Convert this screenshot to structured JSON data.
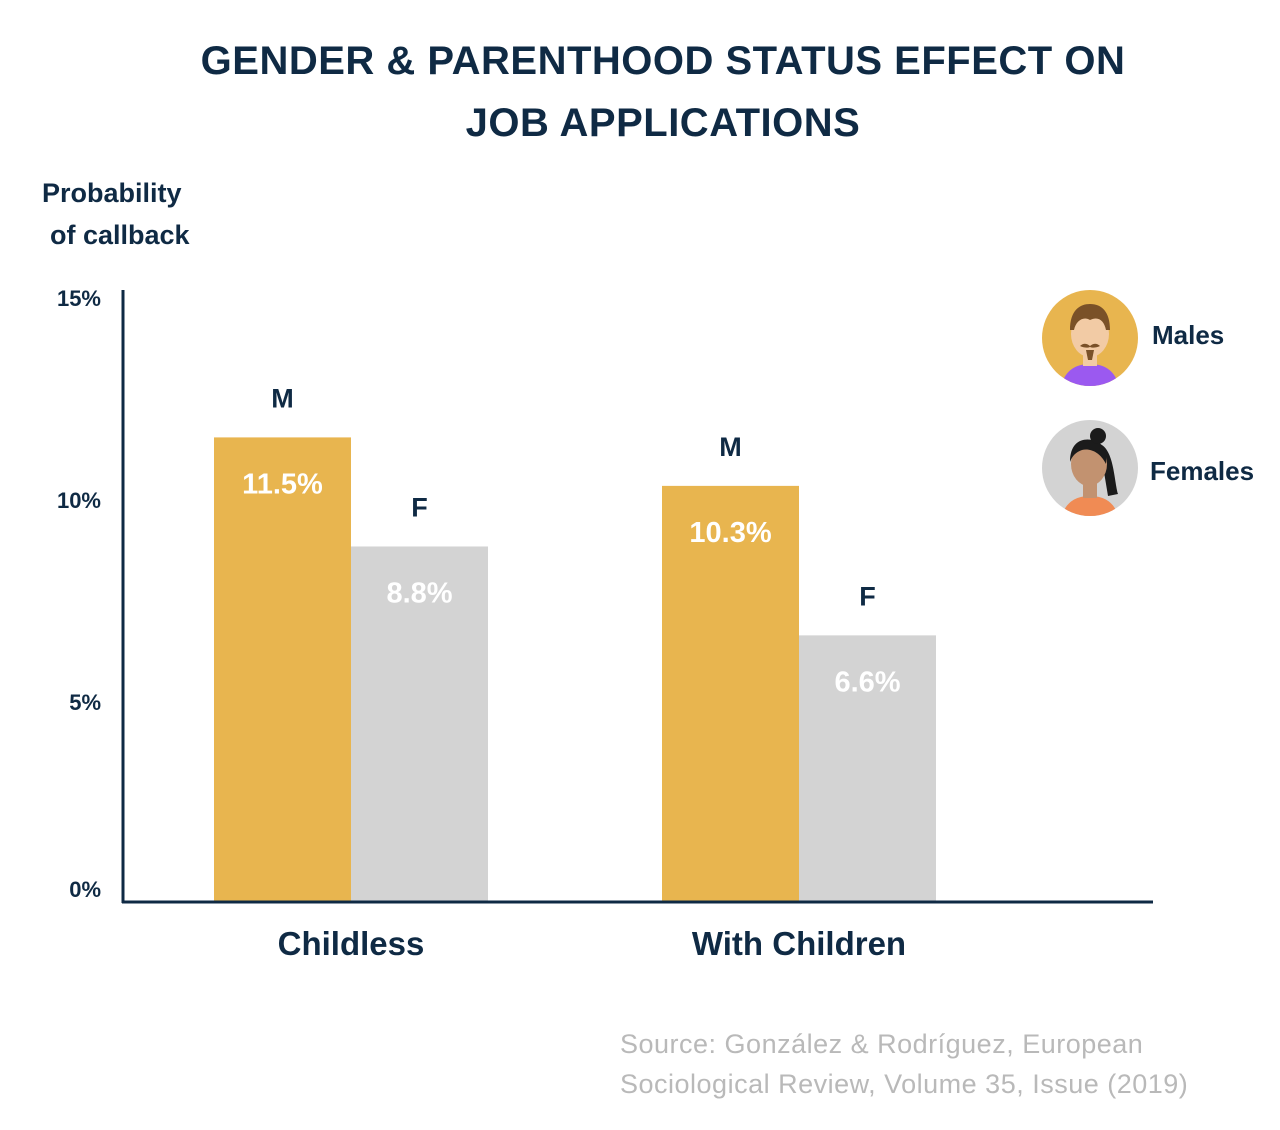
{
  "title": {
    "line1": "GENDER & PARENTHOOD STATUS EFFECT ON",
    "line2": "JOB APPLICATIONS"
  },
  "colors": {
    "male": "#e8b54f",
    "female": "#d3d3d3",
    "axis": "#0f2a44",
    "text": "#0f2a44",
    "bar_label": "#ffffff"
  },
  "chart_data": {
    "type": "bar",
    "title": "GENDER & PARENTHOOD STATUS EFFECT ON JOB APPLICATIONS",
    "ylabel": "Probability of callback",
    "xlabel": "",
    "ylim": [
      0,
      15
    ],
    "yticks": [
      {
        "value": 0,
        "label": "0%"
      },
      {
        "value": 5,
        "label": "5%"
      },
      {
        "value": 10,
        "label": "10%"
      },
      {
        "value": 15,
        "label": "15%"
      }
    ],
    "categories": [
      "Childless",
      "With Children"
    ],
    "series": [
      {
        "name": "Males",
        "short": "M",
        "values": [
          11.5,
          10.3
        ],
        "labels": [
          "11.5%",
          "10.3%"
        ]
      },
      {
        "name": "Females",
        "short": "F",
        "values": [
          8.8,
          6.6
        ],
        "labels": [
          "8.8%",
          "6.6%"
        ]
      }
    ],
    "legend_position": "top-right"
  },
  "ylabel": {
    "line1": "Probability",
    "line2": "of callback"
  },
  "legend": [
    {
      "label": "Males",
      "icon": "male-avatar-icon"
    },
    {
      "label": "Females",
      "icon": "female-avatar-icon"
    }
  ],
  "source": {
    "line1": "Source: González & Rodríguez, European",
    "line2": "Sociological Review, Volume 35, Issue (2019)"
  }
}
